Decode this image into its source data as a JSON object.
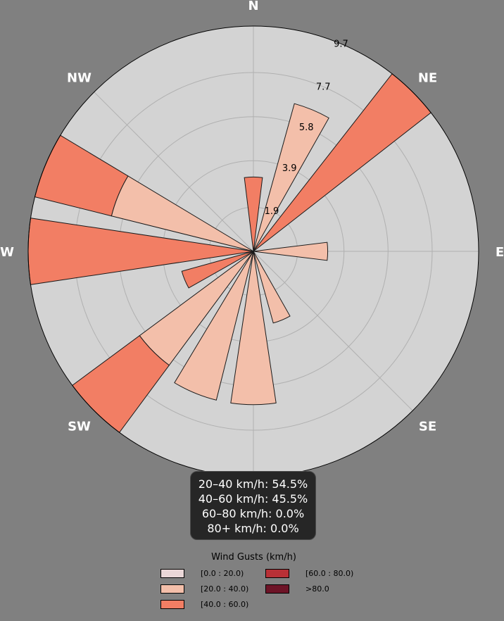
{
  "chart_data": {
    "type": "windrose",
    "radial_ticks": [
      "1.9",
      "3.9",
      "5.8",
      "7.7",
      "9.7"
    ],
    "radial_tick_values": [
      1.9,
      3.9,
      5.8,
      7.7,
      9.7
    ],
    "rmax": 9.7,
    "directions": [
      "N",
      "NE",
      "E",
      "SE",
      "SW",
      "W",
      "NW"
    ],
    "direction_angles_deg": [
      0,
      45,
      90,
      135,
      225,
      270,
      315
    ],
    "sectors": [
      {
        "center_deg": 0,
        "width_deg": 14,
        "stack": [
          {
            "bin": "40-60",
            "value": 3.2
          }
        ]
      },
      {
        "center_deg": 22.5,
        "width_deg": 14,
        "stack": [
          {
            "bin": "20-40",
            "value": 6.6
          }
        ]
      },
      {
        "center_deg": 45,
        "width_deg": 14,
        "stack": [
          {
            "bin": "40-60",
            "value": 9.7
          }
        ]
      },
      {
        "center_deg": 90,
        "width_deg": 14,
        "stack": [
          {
            "bin": "20-40",
            "value": 3.2
          }
        ]
      },
      {
        "center_deg": 157.5,
        "width_deg": 14,
        "stack": [
          {
            "bin": "20-40",
            "value": 3.2
          }
        ]
      },
      {
        "center_deg": 180,
        "width_deg": 17,
        "stack": [
          {
            "bin": "20-40",
            "value": 6.6
          }
        ]
      },
      {
        "center_deg": 202.5,
        "width_deg": 17,
        "stack": [
          {
            "bin": "20-40",
            "value": 6.6
          }
        ]
      },
      {
        "center_deg": 225,
        "width_deg": 17,
        "stack": [
          {
            "bin": "20-40",
            "value": 6.1
          },
          {
            "bin": "40-60",
            "value": 3.6
          }
        ]
      },
      {
        "center_deg": 247.5,
        "width_deg": 14,
        "stack": [
          {
            "bin": "40-60",
            "value": 3.2
          }
        ]
      },
      {
        "center_deg": 270,
        "width_deg": 17,
        "stack": [
          {
            "bin": "40-60",
            "value": 9.7
          }
        ]
      },
      {
        "center_deg": 292.5,
        "width_deg": 17,
        "stack": [
          {
            "bin": "20-40",
            "value": 6.3
          },
          {
            "bin": "40-60",
            "value": 3.4
          }
        ]
      }
    ],
    "bin_colors": {
      "0-20": "#ead7d8",
      "20-40": "#f3bfaa",
      "40-60": "#f27e64",
      "60-80": "#b83036",
      "80+": "#6d1427"
    },
    "stats": [
      "20–40 km/h: 54.5%",
      "40–60 km/h: 45.5%",
      "60–80 km/h: 0.0%",
      "80+ km/h: 0.0%"
    ],
    "legend": {
      "title": "Wind Gusts (km/h)",
      "placement": "bottom-center",
      "items": [
        {
          "label": "[0.0 : 20.0)",
          "color": "#ead7d8"
        },
        {
          "label": "[20.0 : 40.0)",
          "color": "#f3bfaa"
        },
        {
          "label": "[40.0 : 60.0)",
          "color": "#f27e64"
        },
        {
          "label": "[60.0 : 80.0)",
          "color": "#b83036"
        },
        {
          "label": ">80.0",
          "color": "#6d1427"
        }
      ]
    },
    "polar_background": "#d3d3d3",
    "page_background": "#808080",
    "grid": true
  }
}
